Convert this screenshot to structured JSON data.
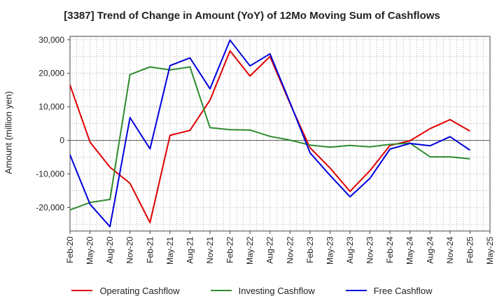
{
  "chart_data": {
    "type": "line",
    "title": "[3387]  Trend of Change in Amount (YoY) of 12Mo Moving Sum of Cashflows",
    "xlabel": "",
    "ylabel": "Amount (million yen)",
    "ylim": [
      -27000,
      31000
    ],
    "yticks": [
      30000,
      20000,
      10000,
      0,
      -10000,
      -20000
    ],
    "ytick_labels": [
      "30,000",
      "20,000",
      "10,000",
      "0",
      "-10,000",
      "-20,000"
    ],
    "categories": [
      "Feb-20",
      "May-20",
      "Aug-20",
      "Nov-20",
      "Feb-21",
      "May-21",
      "Aug-21",
      "Nov-21",
      "Feb-22",
      "May-22",
      "Aug-22",
      "Nov-22",
      "Feb-23",
      "May-23",
      "Aug-23",
      "Nov-23",
      "Feb-24",
      "May-24",
      "Aug-24",
      "Nov-24",
      "Feb-25",
      "May-25"
    ],
    "series": [
      {
        "name": "Operating Cashflow",
        "color": "#e00000",
        "values": [
          16500,
          -500,
          -8000,
          -12800,
          -24500,
          1500,
          3000,
          12000,
          26700,
          19200,
          25000,
          11000,
          -2200,
          -8200,
          -15200,
          -9000,
          -1500,
          -100,
          3500,
          6200,
          2800,
          null
        ]
      },
      {
        "name": "Investing Cashflow",
        "color": "#2e8b2e",
        "values": [
          -20700,
          -18500,
          -17600,
          19600,
          21900,
          21000,
          21900,
          3800,
          3200,
          3100,
          1200,
          100,
          -1400,
          -2000,
          -1500,
          -1900,
          -1200,
          -800,
          -4900,
          -4900,
          -5500,
          null
        ]
      },
      {
        "name": "Free Cashflow",
        "color": "#0000dd",
        "values": [
          -4300,
          -19000,
          -25700,
          6800,
          -2500,
          22300,
          24600,
          15400,
          29900,
          22200,
          25800,
          11300,
          -3700,
          -10400,
          -16800,
          -11300,
          -2600,
          -900,
          -1600,
          1100,
          -2900,
          null
        ]
      }
    ],
    "legend_position": "bottom",
    "grid": true
  }
}
